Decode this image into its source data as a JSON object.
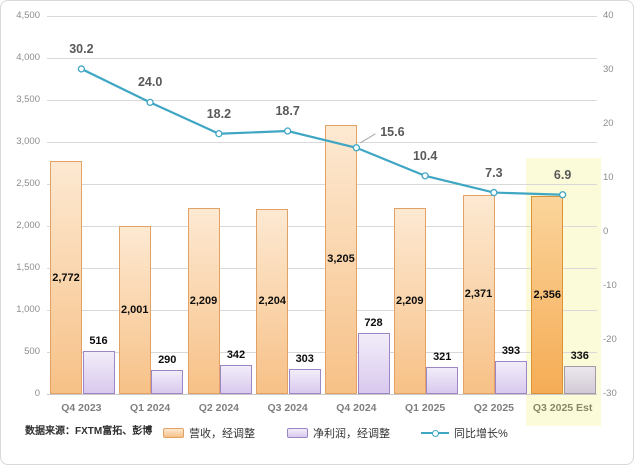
{
  "source_note": "数据来源：FXTM富拓、彭博",
  "chart_data": {
    "type": "bar",
    "subtype": "combo-bar-line",
    "categories": [
      "Q4 2023",
      "Q1 2024",
      "Q2 2024",
      "Q3 2024",
      "Q4 2024",
      "Q1 2025",
      "Q2 2025",
      "Q3 2025 Est"
    ],
    "series": [
      {
        "name": "营收，经调整",
        "type": "bar",
        "axis": "left",
        "values": [
          2772,
          2001,
          2209,
          2204,
          3205,
          2209,
          2371,
          2356
        ],
        "labels": [
          "2,772",
          "2,001",
          "2,209",
          "2,204",
          "3,205",
          "2,209",
          "2,371",
          "2,356"
        ]
      },
      {
        "name": "净利润，经调整",
        "type": "bar",
        "axis": "left",
        "values": [
          516,
          290,
          342,
          303,
          728,
          321,
          393,
          336
        ],
        "labels": [
          "516",
          "290",
          "342",
          "303",
          "728",
          "321",
          "393",
          "336"
        ]
      },
      {
        "name": "同比增长%",
        "type": "line",
        "axis": "right",
        "values": [
          30.2,
          24.0,
          18.2,
          18.7,
          15.6,
          10.4,
          7.3,
          6.9
        ],
        "labels": [
          "30.2",
          "24.0",
          "18.2",
          "18.7",
          "15.6",
          "10.4",
          "7.3",
          "6.9"
        ]
      }
    ],
    "left_axis": {
      "min": 0,
      "max": 4500,
      "step": 500,
      "tick_labels": [
        "4,500",
        "4,000",
        "3,500",
        "3,000",
        "2,500",
        "2,000",
        "1,500",
        "1,000",
        "500",
        "0"
      ]
    },
    "right_axis": {
      "min": -30,
      "max": 40,
      "step": 10,
      "tick_labels": [
        "40",
        "30",
        "20",
        "10",
        "0",
        "-10",
        "-20",
        "-30"
      ]
    },
    "grid": true,
    "legend_position": "bottom",
    "highlight_category": "Q3 2025 Est",
    "colors": {
      "revenue_fill_top": "#FDE9D2",
      "revenue_fill_bottom": "#F7C187",
      "revenue_border": "#E2A266",
      "revenue_est_fill_top": "#FBD49B",
      "revenue_est_fill_bottom": "#F5AC55",
      "revenue_est_border": "#DB9338",
      "profit_fill_top": "#F2EDF9",
      "profit_fill_bottom": "#D9C9EE",
      "profit_border": "#9C86C5",
      "profit_est_fill_top": "#EBE7ED",
      "profit_est_fill_bottom": "#D3CAD6",
      "profit_est_border": "#A29AA7",
      "growth_line": "#3FA6C4",
      "highlight_band": "#FBFAD9",
      "gridline": "#D9D9D9",
      "baseline": "#C9C9C9",
      "axis_text": "#8C8C8C",
      "x_label": "#7F7F7F",
      "x_label_est": "#8A8767",
      "bar_label": "#0D0D0D",
      "line_label": "#595959"
    }
  }
}
